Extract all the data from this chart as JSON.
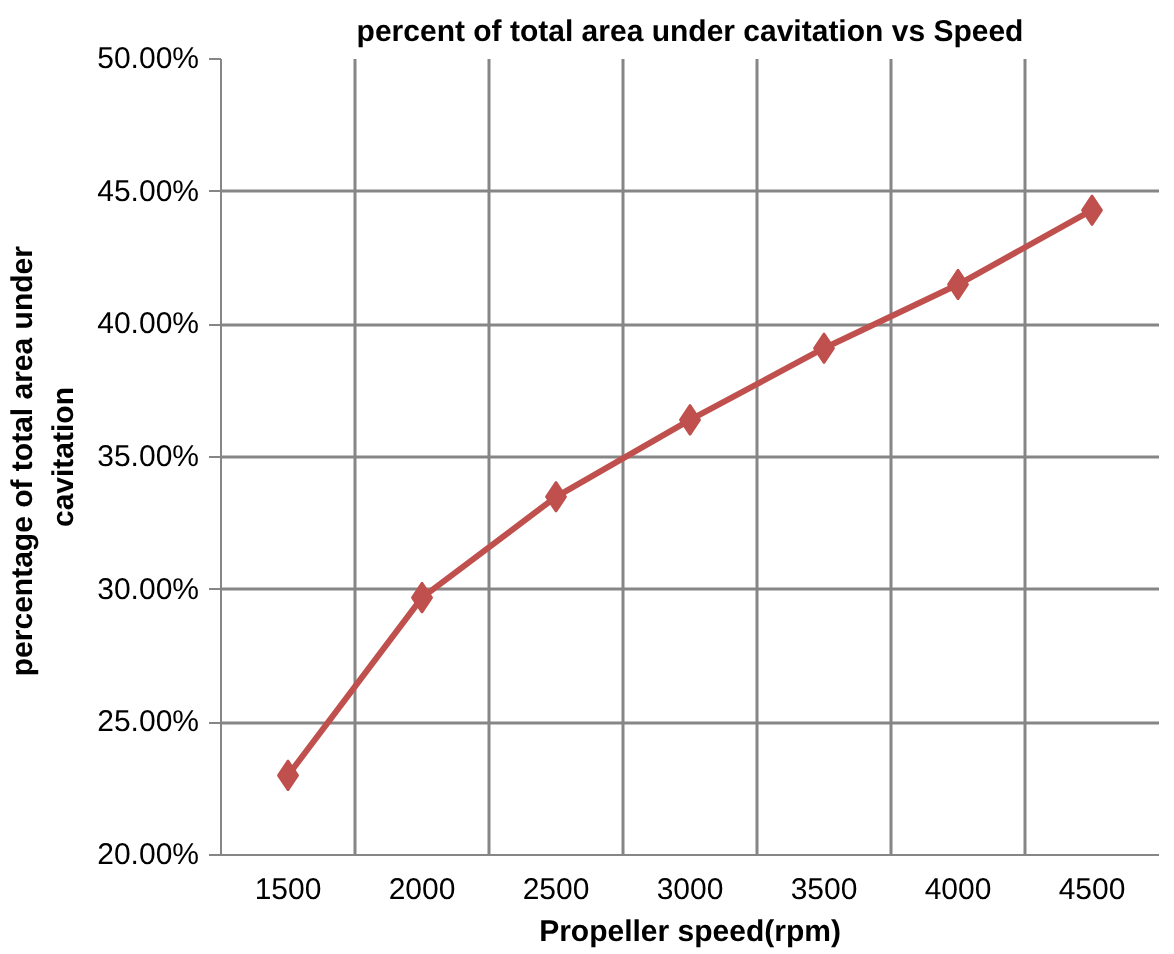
{
  "chart_data": {
    "type": "line",
    "title": "percent of total area under cavitation vs Speed",
    "xlabel": "Propeller speed(rpm)",
    "ylabel": "percentage  of total area under cavitation",
    "categories": [
      "1500",
      "2000",
      "2500",
      "3000",
      "3500",
      "4000",
      "4500"
    ],
    "series": [
      {
        "color": "#c0504d",
        "values": [
          23.0,
          29.7,
          33.5,
          36.4,
          39.1,
          41.5,
          44.3
        ]
      }
    ],
    "ylim": [
      20,
      50
    ],
    "yticks": [
      {
        "value": 20,
        "label": "20.00%"
      },
      {
        "value": 25,
        "label": "25.00%"
      },
      {
        "value": 30,
        "label": "30.00%"
      },
      {
        "value": 35,
        "label": "35.00%"
      },
      {
        "value": 40,
        "label": "40.00%"
      },
      {
        "value": 45,
        "label": "45.00%"
      },
      {
        "value": 50,
        "label": "50.00%"
      }
    ],
    "grid": true,
    "marker": "diamond",
    "line_style": "solid"
  }
}
